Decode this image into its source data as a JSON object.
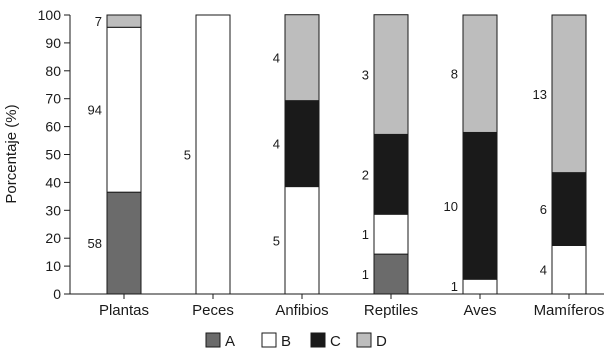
{
  "chart_data": {
    "type": "bar",
    "stacked": true,
    "normalized": true,
    "title": "",
    "xlabel": "",
    "ylabel": "Porcentaje (%)",
    "ylim": [
      0,
      100
    ],
    "yticks": [
      0,
      10,
      20,
      30,
      40,
      50,
      60,
      70,
      80,
      90,
      100
    ],
    "categories": [
      "Plantas",
      "Peces",
      "Anfibios",
      "Reptiles",
      "Aves",
      "Mamíferos"
    ],
    "series": [
      {
        "name": "A",
        "color": "#6b6b6b",
        "counts": [
          58,
          0,
          0,
          1,
          0,
          0
        ],
        "percent": [
          36.5,
          0,
          0,
          14.3,
          0,
          0
        ]
      },
      {
        "name": "B",
        "color": "#ffffff",
        "counts": [
          94,
          5,
          5,
          1,
          1,
          4
        ],
        "percent": [
          59.1,
          100,
          38.5,
          14.3,
          5.3,
          17.4
        ]
      },
      {
        "name": "C",
        "color": "#1a1a1a",
        "counts": [
          0,
          0,
          4,
          2,
          10,
          6
        ],
        "percent": [
          0,
          0,
          30.8,
          28.6,
          52.6,
          26.1
        ]
      },
      {
        "name": "D",
        "color": "#bdbdbd",
        "counts": [
          7,
          0,
          4,
          3,
          8,
          13
        ],
        "percent": [
          4.4,
          0,
          30.8,
          42.9,
          42.1,
          56.5
        ]
      }
    ],
    "legend": {
      "position": "bottom",
      "labels": [
        "A",
        "B",
        "C",
        "D"
      ]
    },
    "grid": false
  }
}
